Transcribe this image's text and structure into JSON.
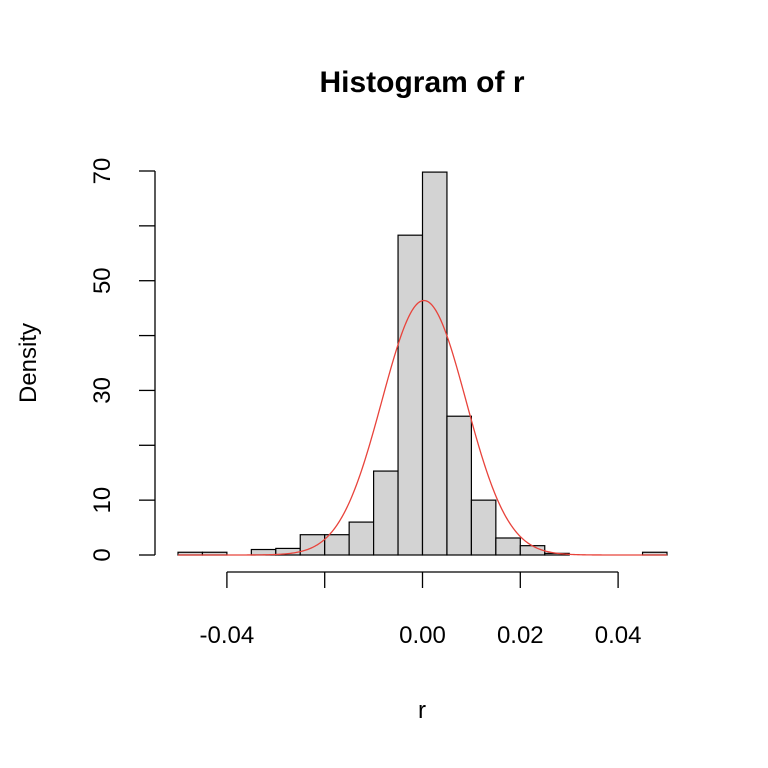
{
  "chart_data": {
    "type": "bar",
    "title": "Histogram of r",
    "xlabel": "r",
    "ylabel": "Density",
    "xlim": [
      -0.05,
      0.05
    ],
    "ylim": [
      0,
      70
    ],
    "x_ticks": [
      -0.04,
      -0.02,
      0.0,
      0.02,
      0.04
    ],
    "x_tick_labels": [
      "-0.04",
      "",
      "0.00",
      "0.02",
      "0.04"
    ],
    "y_ticks": [
      0,
      10,
      20,
      30,
      40,
      50,
      60,
      70
    ],
    "y_tick_labels": [
      "0",
      "10",
      "",
      "30",
      "",
      "50",
      "",
      "70"
    ],
    "bin_width": 0.005,
    "bins": [
      {
        "x0": -0.05,
        "x1": -0.045,
        "density": 0.5
      },
      {
        "x0": -0.045,
        "x1": -0.04,
        "density": 0.5
      },
      {
        "x0": -0.04,
        "x1": -0.035,
        "density": 0
      },
      {
        "x0": -0.035,
        "x1": -0.03,
        "density": 1
      },
      {
        "x0": -0.03,
        "x1": -0.025,
        "density": 1.2
      },
      {
        "x0": -0.025,
        "x1": -0.02,
        "density": 3.7
      },
      {
        "x0": -0.02,
        "x1": -0.015,
        "density": 3.7
      },
      {
        "x0": -0.015,
        "x1": -0.01,
        "density": 6
      },
      {
        "x0": -0.01,
        "x1": -0.005,
        "density": 15.3
      },
      {
        "x0": -0.005,
        "x1": 0.0,
        "density": 58.3
      },
      {
        "x0": 0.0,
        "x1": 0.005,
        "density": 69.8
      },
      {
        "x0": 0.005,
        "x1": 0.01,
        "density": 25.3
      },
      {
        "x0": 0.01,
        "x1": 0.015,
        "density": 10
      },
      {
        "x0": 0.015,
        "x1": 0.02,
        "density": 3.1
      },
      {
        "x0": 0.02,
        "x1": 0.025,
        "density": 1.7
      },
      {
        "x0": 0.025,
        "x1": 0.03,
        "density": 0.3
      },
      {
        "x0": 0.03,
        "x1": 0.035,
        "density": 0
      },
      {
        "x0": 0.035,
        "x1": 0.04,
        "density": 0
      },
      {
        "x0": 0.04,
        "x1": 0.045,
        "density": 0
      },
      {
        "x0": 0.045,
        "x1": 0.05,
        "density": 0.5
      }
    ],
    "normal_curve": {
      "mean": 0.0003,
      "sd": 0.0086,
      "color": "#e8433b"
    },
    "bar_fill": "#d3d3d3",
    "bar_stroke": "#000000",
    "grid": false,
    "legend": "none"
  }
}
